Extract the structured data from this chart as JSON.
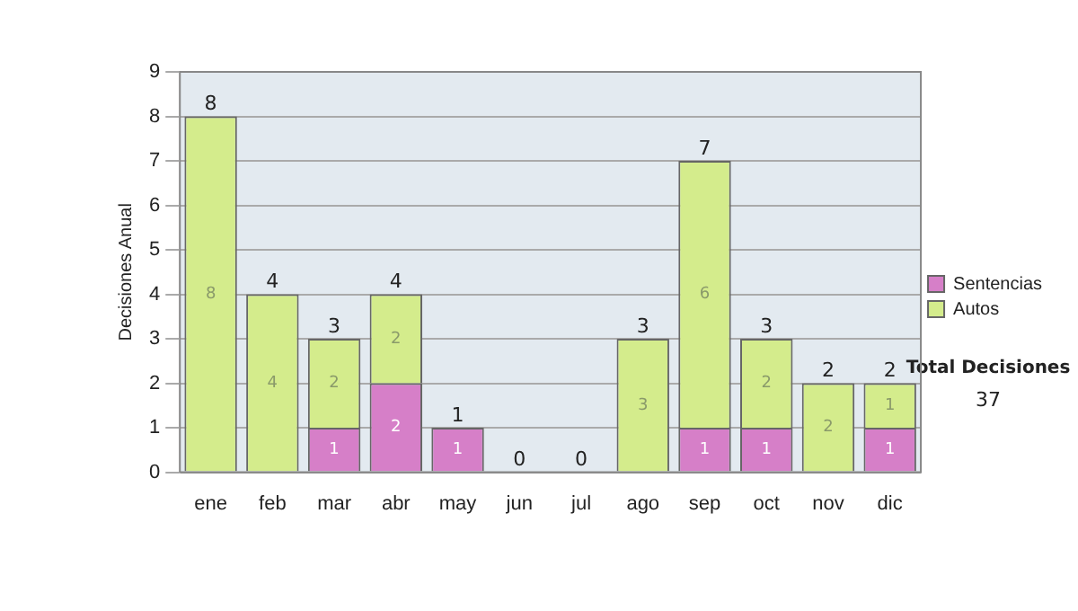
{
  "chart_data": {
    "type": "bar",
    "stacked": true,
    "ylabel": "Decisiones Anual",
    "categories": [
      "ene",
      "feb",
      "mar",
      "abr",
      "may",
      "jun",
      "jul",
      "ago",
      "sep",
      "oct",
      "nov",
      "dic"
    ],
    "series": [
      {
        "name": "Sentencias",
        "color": "#d67fc8",
        "values": [
          0,
          0,
          1,
          2,
          1,
          0,
          0,
          0,
          1,
          1,
          0,
          1
        ],
        "value_labels": [
          null,
          null,
          "1",
          "2",
          "1",
          null,
          null,
          null,
          "1",
          "1",
          null,
          "1"
        ]
      },
      {
        "name": "Autos",
        "color": "#d4ec8c",
        "values": [
          8,
          4,
          2,
          2,
          0,
          0,
          0,
          3,
          6,
          2,
          2,
          1
        ],
        "value_labels": [
          "8",
          "4",
          "2",
          "2",
          null,
          null,
          null,
          "3",
          "6",
          "2",
          "2",
          "1"
        ]
      }
    ],
    "totals": [
      "8",
      "4",
      "3",
      "4",
      "1",
      "0",
      "0",
      "3",
      "7",
      "3",
      "2",
      "2"
    ],
    "ylim": [
      0,
      9
    ],
    "yticks": [
      0,
      1,
      2,
      3,
      4,
      5,
      6,
      7,
      8,
      9
    ],
    "grid": "y",
    "legend": "right",
    "annotations": [
      "Total Decisiones",
      "37"
    ]
  }
}
